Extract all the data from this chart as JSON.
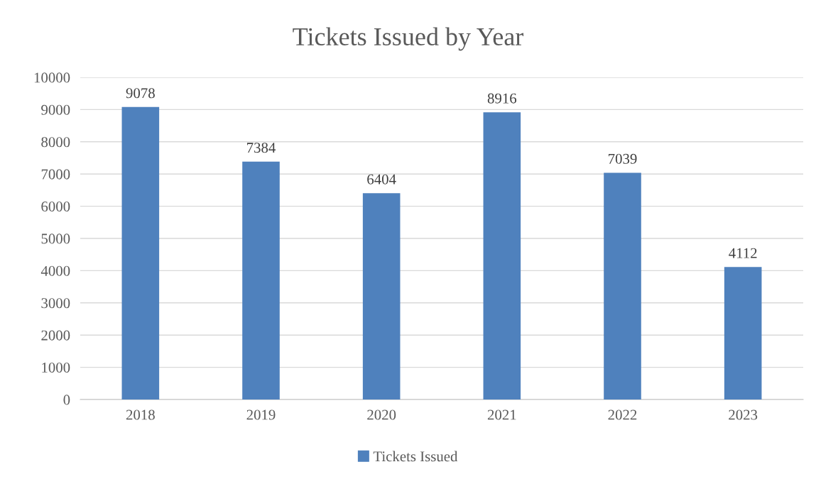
{
  "chart_data": {
    "type": "bar",
    "title": "Tickets Issued by Year",
    "categories": [
      "2018",
      "2019",
      "2020",
      "2021",
      "2022",
      "2023"
    ],
    "series": [
      {
        "name": "Tickets Issued",
        "color": "#4f81bd",
        "values": [
          9078,
          7384,
          6404,
          8916,
          7039,
          4112
        ]
      }
    ],
    "ylim": [
      0,
      10000
    ],
    "yticks": [
      0,
      1000,
      2000,
      3000,
      4000,
      5000,
      6000,
      7000,
      8000,
      9000,
      10000
    ],
    "grid": "y",
    "legend": "bottom",
    "data_labels": true
  }
}
